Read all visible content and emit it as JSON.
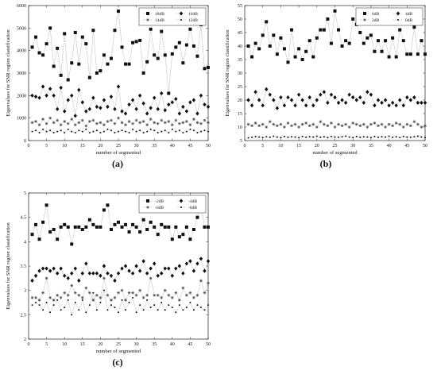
{
  "chart_data": [
    {
      "type": "line",
      "panel_label": "(a)",
      "xlabel": "number of segmented",
      "ylabel": "Eigenvalues for SNR region classification",
      "xlim": [
        0,
        50
      ],
      "ylim": [
        0,
        6000
      ],
      "xticks": [
        0,
        5,
        10,
        15,
        20,
        25,
        30,
        35,
        40,
        45,
        50
      ],
      "yticks": [
        0,
        1000,
        2000,
        3000,
        4000,
        5000,
        6000
      ],
      "grid": false,
      "legend_position": "top-right",
      "legend_columns": 2,
      "x": [
        1,
        2,
        3,
        4,
        5,
        6,
        7,
        8,
        9,
        10,
        11,
        12,
        13,
        14,
        15,
        16,
        17,
        18,
        19,
        20,
        21,
        22,
        23,
        24,
        25,
        26,
        27,
        28,
        29,
        30,
        31,
        32,
        33,
        34,
        35,
        36,
        37,
        38,
        39,
        40,
        41,
        42,
        43,
        44,
        45,
        46,
        47,
        48,
        49,
        50
      ],
      "series": [
        {
          "name": "18dB",
          "marker": "square",
          "values": [
            4150,
            4600,
            3900,
            3800,
            4300,
            5000,
            3300,
            4100,
            2900,
            4750,
            2700,
            3450,
            4800,
            3400,
            4600,
            4300,
            2800,
            4900,
            3000,
            3100,
            3800,
            3400,
            3650,
            4900,
            5750,
            4150,
            3400,
            3400,
            4350,
            4400,
            4450,
            3000,
            3500,
            4950,
            3800,
            3650,
            4850,
            3800,
            2100,
            3850,
            4150,
            4350,
            3450,
            4250,
            4950,
            4200,
            3750,
            5150,
            3200,
            3250
          ]
        },
        {
          "name": "16dB",
          "marker": "diamond",
          "values": [
            2000,
            1950,
            1900,
            2400,
            2000,
            2300,
            2000,
            1400,
            2350,
            1300,
            1800,
            2000,
            1100,
            2250,
            1700,
            1300,
            1400,
            1900,
            1500,
            1450,
            1800,
            1500,
            1950,
            1400,
            2400,
            1300,
            1200,
            1600,
            1800,
            1400,
            2000,
            1650,
            1200,
            1450,
            1900,
            1400,
            2100,
            1350,
            1600,
            1700,
            1850,
            1200,
            1500,
            1300,
            1700,
            1800,
            1200,
            2000,
            1600,
            1500
          ]
        },
        {
          "name": "14dB",
          "marker": "asterisk",
          "values": [
            800,
            850,
            700,
            950,
            750,
            1000,
            800,
            900,
            700,
            850,
            750,
            950,
            700,
            800,
            900,
            650,
            850,
            900,
            750,
            800,
            700,
            850,
            900,
            750,
            1000,
            800,
            700,
            850,
            750,
            900,
            800,
            850,
            700,
            950,
            800,
            750,
            900,
            800,
            850,
            700,
            900,
            750,
            800,
            850,
            700,
            950,
            800,
            750,
            900,
            800
          ]
        },
        {
          "name": "12dB",
          "marker": "dot",
          "values": [
            400,
            450,
            350,
            500,
            400,
            450,
            350,
            400,
            450,
            350,
            500,
            400,
            350,
            450,
            400,
            500,
            350,
            400,
            450,
            350,
            400,
            500,
            450,
            350,
            400,
            450,
            400,
            350,
            500,
            400,
            450,
            350,
            400,
            500,
            450,
            350,
            400,
            450,
            350,
            500,
            400,
            450,
            350,
            400,
            500,
            450,
            350,
            400,
            450,
            400
          ]
        }
      ]
    },
    {
      "type": "line",
      "panel_label": "(b)",
      "xlabel": "number of segmented",
      "ylabel": "Eigenvalues for SNR region classification",
      "xlim": [
        0,
        50
      ],
      "ylim": [
        5,
        55
      ],
      "xticks": [
        0,
        5,
        10,
        15,
        20,
        25,
        30,
        35,
        40,
        45,
        50
      ],
      "yticks": [
        5,
        10,
        15,
        20,
        25,
        30,
        35,
        40,
        45,
        50,
        55
      ],
      "grid": false,
      "legend_position": "top-right",
      "legend_columns": 2,
      "x": [
        1,
        2,
        3,
        4,
        5,
        6,
        7,
        8,
        9,
        10,
        11,
        12,
        13,
        14,
        15,
        16,
        17,
        18,
        19,
        20,
        21,
        22,
        23,
        24,
        25,
        26,
        27,
        28,
        29,
        30,
        31,
        32,
        33,
        34,
        35,
        36,
        37,
        38,
        39,
        40,
        41,
        42,
        43,
        44,
        45,
        46,
        47,
        48,
        49,
        50
      ],
      "series": [
        {
          "name": "6dB",
          "marker": "square",
          "values": [
            40,
            36,
            41,
            39,
            44,
            49,
            40,
            44,
            37,
            43,
            39,
            34,
            46,
            36,
            39,
            35,
            38,
            42,
            36,
            43,
            46,
            46,
            50,
            41,
            53,
            46,
            40,
            42,
            41,
            50,
            48,
            45,
            41,
            43,
            44,
            38,
            42,
            38,
            42,
            36,
            43,
            36,
            46,
            42,
            37,
            37,
            47,
            37,
            42,
            37
          ]
        },
        {
          "name": "4dB",
          "marker": "diamond",
          "values": [
            20,
            18,
            23,
            20,
            18,
            24,
            22,
            20,
            17,
            21,
            18,
            21,
            20,
            18,
            22,
            20,
            18,
            21,
            18,
            20,
            22,
            23,
            19,
            22,
            21,
            19,
            20,
            19,
            22,
            21,
            20,
            21,
            19,
            23,
            22,
            18,
            20,
            19,
            20,
            18,
            19,
            18,
            20,
            18,
            21,
            20,
            21,
            19,
            19,
            19
          ]
        },
        {
          "name": "2dB",
          "marker": "asterisk",
          "values": [
            11,
            10.5,
            11.5,
            10.5,
            11,
            10,
            12,
            11,
            10.5,
            11,
            10,
            11.5,
            10.5,
            11,
            10,
            11,
            11.5,
            10.5,
            11,
            10,
            12,
            11,
            10.5,
            11.5,
            10,
            11,
            10.5,
            11,
            10,
            11.5,
            11,
            10.5,
            11,
            10,
            11,
            11.5,
            10.5,
            11,
            10,
            11,
            10.5,
            11.5,
            11,
            10,
            11,
            10.5,
            12,
            11,
            10,
            10.5
          ]
        },
        {
          "name": "0dB",
          "marker": "dot",
          "values": [
            6,
            6.2,
            6.5,
            6.3,
            6.1,
            6.4,
            6.2,
            6.6,
            6.3,
            6.1,
            6.5,
            6.2,
            6.4,
            6.3,
            6.1,
            6.5,
            6.2,
            6.4,
            6.3,
            6.6,
            6.2,
            6.4,
            6.1,
            6.5,
            6.3,
            6.2,
            6.4,
            6.6,
            6.3,
            6.1,
            6.5,
            6.2,
            6.4,
            6.3,
            6.1,
            6.5,
            6.2,
            6.4,
            6.3,
            6.6,
            6.2,
            6.4,
            6.1,
            6.5,
            6.3,
            6.2,
            6.4,
            6.6,
            6.3,
            6.1
          ]
        }
      ]
    },
    {
      "type": "line",
      "panel_label": "(c)",
      "xlabel": "number of segmented",
      "ylabel": "Eigenvalues for SNR region classification",
      "xlim": [
        0,
        50
      ],
      "ylim": [
        2,
        5
      ],
      "xticks": [
        0,
        5,
        10,
        15,
        20,
        25,
        30,
        35,
        40,
        45,
        50
      ],
      "yticks": [
        2,
        2.5,
        3,
        3.5,
        4,
        4.5,
        5
      ],
      "grid": false,
      "legend_position": "top-right",
      "legend_columns": 2,
      "x": [
        1,
        2,
        3,
        4,
        5,
        6,
        7,
        8,
        9,
        10,
        11,
        12,
        13,
        14,
        15,
        16,
        17,
        18,
        19,
        20,
        21,
        22,
        23,
        24,
        25,
        26,
        27,
        28,
        29,
        30,
        31,
        32,
        33,
        34,
        35,
        36,
        37,
        38,
        39,
        40,
        41,
        42,
        43,
        44,
        45,
        46,
        47,
        48,
        49,
        50
      ],
      "series": [
        {
          "name": "-2dB",
          "marker": "square",
          "values": [
            4.15,
            4.35,
            4.05,
            4.4,
            4.75,
            4.2,
            4.25,
            4.05,
            4.3,
            4.35,
            4.3,
            3.95,
            4.3,
            4.3,
            4.25,
            4.3,
            4.45,
            4.35,
            4.3,
            4.3,
            4.65,
            4.75,
            4.25,
            4.35,
            4.4,
            4.3,
            4.35,
            4.2,
            4.35,
            4.3,
            4.2,
            4.45,
            4.25,
            4.4,
            4.3,
            4.15,
            4.35,
            4.3,
            4.3,
            4.05,
            4.3,
            4.1,
            4.15,
            4.3,
            4.05,
            4.25,
            4.5,
            4.75,
            4.3,
            4.3
          ]
        },
        {
          "name": "-4dB",
          "marker": "diamond",
          "values": [
            3.2,
            3.3,
            3.4,
            3.45,
            3.45,
            3.4,
            3.45,
            3.35,
            3.45,
            3.3,
            3.25,
            3.35,
            3.45,
            3.2,
            3.35,
            3.55,
            3.35,
            3.35,
            3.35,
            3.3,
            3.5,
            3.35,
            3.3,
            3.2,
            3.35,
            3.45,
            3.5,
            3.4,
            3.35,
            3.5,
            3.4,
            3.6,
            3.35,
            3.45,
            3.55,
            3.3,
            3.35,
            3.45,
            3.45,
            3.3,
            3.45,
            3.5,
            3.35,
            3.55,
            3.6,
            3.4,
            3.55,
            3.65,
            3.4,
            3.6
          ]
        },
        {
          "name": "-6dB",
          "marker": "asterisk",
          "values": [
            2.85,
            2.85,
            2.8,
            2.95,
            3.25,
            2.85,
            2.8,
            2.9,
            2.85,
            2.95,
            2.9,
            3.1,
            2.95,
            2.9,
            2.85,
            3.05,
            2.95,
            2.8,
            2.9,
            2.85,
            3.25,
            2.9,
            2.8,
            2.85,
            2.95,
            3.0,
            2.8,
            2.95,
            2.95,
            2.9,
            3.0,
            2.85,
            2.9,
            3.25,
            2.9,
            2.9,
            2.85,
            3.0,
            2.9,
            2.85,
            2.95,
            2.8,
            3.05,
            2.9,
            2.95,
            2.85,
            2.9,
            3.2,
            2.95,
            3.15
          ]
        },
        {
          "name": "-8dB",
          "marker": "dot",
          "values": [
            2.7,
            2.75,
            2.7,
            2.6,
            2.75,
            2.55,
            2.7,
            2.8,
            2.6,
            2.65,
            2.8,
            2.5,
            2.75,
            2.6,
            2.8,
            2.55,
            2.7,
            2.95,
            2.6,
            2.75,
            3.0,
            2.6,
            2.7,
            2.65,
            2.55,
            2.8,
            2.6,
            2.75,
            2.85,
            2.55,
            2.7,
            2.6,
            2.8,
            2.65,
            2.7,
            2.6,
            2.75,
            2.6,
            2.7,
            2.65,
            2.55,
            2.7,
            2.6,
            2.65,
            2.75,
            2.6,
            2.7,
            2.65,
            2.6,
            2.7
          ]
        }
      ]
    }
  ]
}
